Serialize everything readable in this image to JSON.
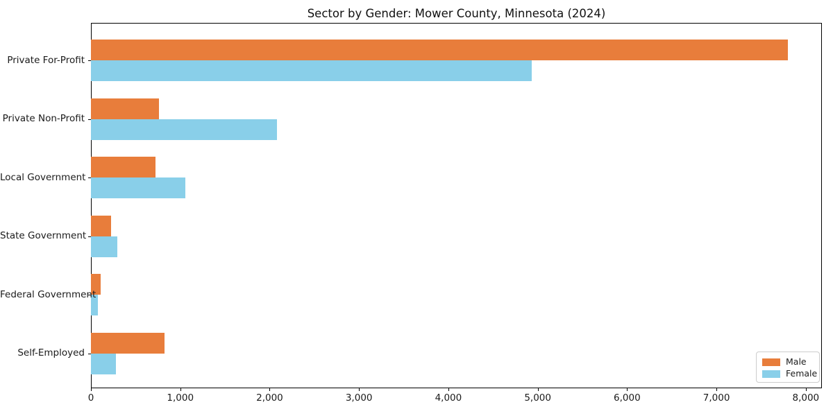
{
  "chart_data": {
    "type": "bar",
    "orientation": "horizontal",
    "title": "Sector by Gender: Mower County, Minnesota (2024)",
    "categories": [
      "Private For-Profit",
      "Private Non-Profit",
      "Local Government",
      "State Government",
      "Federal Government",
      "Self-Employed"
    ],
    "series": [
      {
        "name": "Male",
        "color": "#e87d3b",
        "values": [
          7800,
          760,
          720,
          225,
          110,
          820
        ]
      },
      {
        "name": "Female",
        "color": "#89cfe9",
        "values": [
          4930,
          2080,
          1060,
          295,
          78,
          280
        ]
      }
    ],
    "xlabel": "",
    "ylabel": "",
    "xlim": [
      0,
      8180
    ],
    "x_ticks": [
      0,
      1000,
      2000,
      3000,
      4000,
      5000,
      6000,
      7000,
      8000
    ],
    "x_tick_labels": [
      "0",
      "1,000",
      "2,000",
      "3,000",
      "4,000",
      "5,000",
      "6,000",
      "7,000",
      "8,000"
    ],
    "grid": false,
    "legend": {
      "position": "lower right",
      "entries": [
        "Male",
        "Female"
      ]
    }
  }
}
